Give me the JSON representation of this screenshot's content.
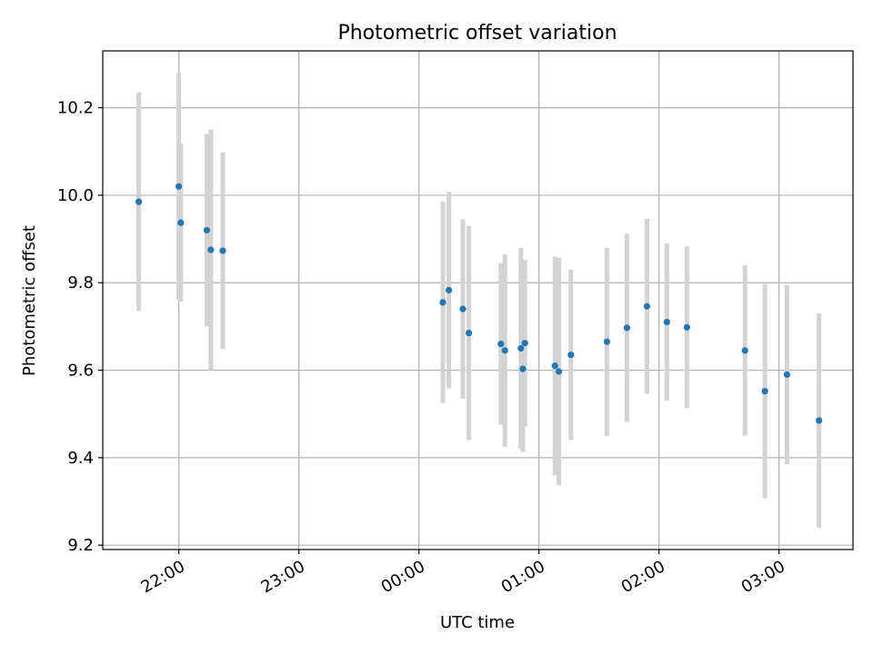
{
  "chart_data": {
    "type": "scatter",
    "title": "Photometric offset variation",
    "xlabel": "UTC time",
    "ylabel": "Photometric offset",
    "x_tick_labels": [
      "22:00",
      "23:00",
      "00:00",
      "01:00",
      "02:00",
      "03:00"
    ],
    "y_tick_labels": [
      "9.2",
      "9.4",
      "9.6",
      "9.8",
      "10.0",
      "10.2"
    ],
    "xlim": [
      "21:22",
      "03:37"
    ],
    "ylim": [
      9.19,
      10.33
    ],
    "grid": true,
    "marker_color": "#1f77b4",
    "errorbar_color": "#d3d3d3",
    "points": [
      {
        "time": "21:40",
        "value": 9.985,
        "err": 0.25
      },
      {
        "time": "22:00",
        "value": 10.02,
        "err": 0.26
      },
      {
        "time": "22:01",
        "value": 9.937,
        "err": 0.18
      },
      {
        "time": "22:14",
        "value": 9.92,
        "err": 0.22
      },
      {
        "time": "22:16",
        "value": 9.875,
        "err": 0.275
      },
      {
        "time": "22:22",
        "value": 9.873,
        "err": 0.225
      },
      {
        "time": "00:12",
        "value": 9.755,
        "err": 0.23
      },
      {
        "time": "00:15",
        "value": 9.783,
        "err": 0.225
      },
      {
        "time": "00:22",
        "value": 9.74,
        "err": 0.205
      },
      {
        "time": "00:25",
        "value": 9.685,
        "err": 0.245
      },
      {
        "time": "00:41",
        "value": 9.66,
        "err": 0.185
      },
      {
        "time": "00:43",
        "value": 9.645,
        "err": 0.22
      },
      {
        "time": "00:51",
        "value": 9.65,
        "err": 0.23
      },
      {
        "time": "00:52",
        "value": 9.603,
        "err": 0.19
      },
      {
        "time": "00:53",
        "value": 9.662,
        "err": 0.19
      },
      {
        "time": "01:08",
        "value": 9.61,
        "err": 0.25
      },
      {
        "time": "01:10",
        "value": 9.597,
        "err": 0.26
      },
      {
        "time": "01:16",
        "value": 9.635,
        "err": 0.195
      },
      {
        "time": "01:34",
        "value": 9.665,
        "err": 0.215
      },
      {
        "time": "01:44",
        "value": 9.697,
        "err": 0.215
      },
      {
        "time": "01:54",
        "value": 9.746,
        "err": 0.2
      },
      {
        "time": "02:04",
        "value": 9.71,
        "err": 0.18
      },
      {
        "time": "02:14",
        "value": 9.698,
        "err": 0.185
      },
      {
        "time": "02:43",
        "value": 9.645,
        "err": 0.195
      },
      {
        "time": "02:53",
        "value": 9.552,
        "err": 0.245
      },
      {
        "time": "03:04",
        "value": 9.59,
        "err": 0.205
      },
      {
        "time": "03:20",
        "value": 9.485,
        "err": 0.245
      }
    ]
  }
}
